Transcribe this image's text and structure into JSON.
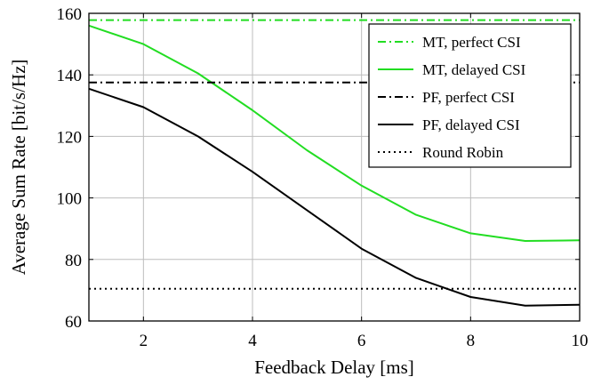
{
  "chart_data": {
    "type": "line",
    "xlabel": "Feedback Delay [ms]",
    "ylabel": "Average Sum Rate [bit/s/Hz]",
    "xlim": [
      1,
      10
    ],
    "ylim": [
      60,
      160
    ],
    "xticks": [
      2,
      4,
      6,
      8,
      10
    ],
    "yticks": [
      60,
      80,
      100,
      120,
      140,
      160
    ],
    "grid": true,
    "legend_position": "top-right",
    "series": [
      {
        "name": "MT, perfect CSI",
        "color": "#22dd22",
        "style": "dashdot",
        "x": [
          1,
          2,
          3,
          4,
          5,
          6,
          7,
          8,
          9,
          10
        ],
        "y": [
          157.8,
          157.8,
          157.8,
          157.8,
          157.8,
          157.8,
          157.8,
          157.8,
          157.8,
          157.8
        ]
      },
      {
        "name": "MT, delayed CSI",
        "color": "#22dd22",
        "style": "solid",
        "x": [
          1,
          2,
          3,
          4,
          5,
          6,
          7,
          8,
          9,
          10
        ],
        "y": [
          156,
          150,
          140.5,
          128.5,
          115.5,
          104,
          94.5,
          88.5,
          86,
          86.2
        ]
      },
      {
        "name": "PF, perfect CSI",
        "color": "#000000",
        "style": "dashdot",
        "x": [
          1,
          2,
          3,
          4,
          5,
          6,
          7,
          8,
          9,
          10
        ],
        "y": [
          137.5,
          137.5,
          137.5,
          137.5,
          137.5,
          137.5,
          137.5,
          137.5,
          137.5,
          137.5
        ]
      },
      {
        "name": "PF, delayed CSI",
        "color": "#000000",
        "style": "solid",
        "x": [
          1,
          2,
          3,
          4,
          5,
          6,
          7,
          8,
          9,
          10
        ],
        "y": [
          135.5,
          129.5,
          120,
          108.5,
          96,
          83.5,
          74,
          67.8,
          65,
          65.3
        ]
      },
      {
        "name": "Round Robin",
        "color": "#000000",
        "style": "dotted",
        "x": [
          1,
          2,
          3,
          4,
          5,
          6,
          7,
          8,
          9,
          10
        ],
        "y": [
          70.5,
          70.5,
          70.5,
          70.5,
          70.5,
          70.5,
          70.5,
          70.5,
          70.5,
          70.5
        ]
      }
    ]
  }
}
